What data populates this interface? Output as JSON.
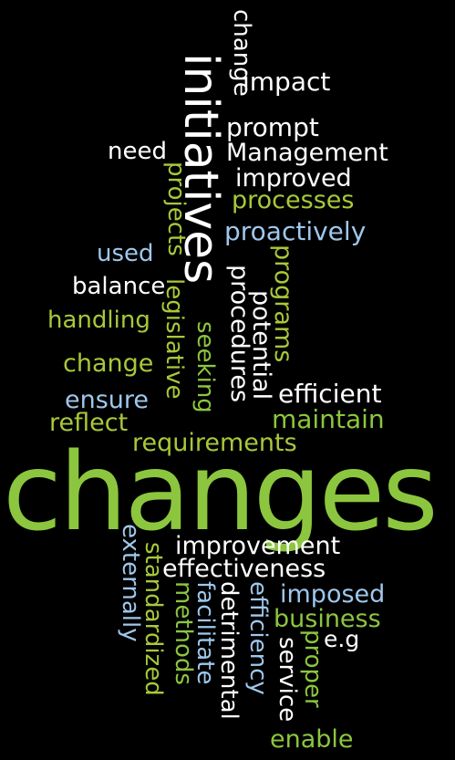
{
  "words": {
    "changes": "changes",
    "initiatives": "initiatives",
    "change_vertical": "change",
    "impact": "impact",
    "prompt": "prompt",
    "need": "need",
    "management": "Management",
    "improved": "improved",
    "projects": "projects",
    "processes": "processes",
    "proactively": "proactively",
    "used": "used",
    "balance": "balance",
    "procedures": "procedures",
    "programs": "programs",
    "potential": "potential",
    "handling": "handling",
    "legislative": "legislative",
    "seeking": "seeking",
    "change": "change",
    "ensure": "ensure",
    "efficient": "efficient",
    "reflect": "reflect",
    "maintain": "maintain",
    "requirements": "requirements",
    "improvement": "improvement",
    "externally": "externally",
    "standardized": "standardized",
    "effectiveness": "effectiveness",
    "methods": "methods",
    "facilitate": "facilitate",
    "detrimental": "detrimental",
    "efficiency": "efficiency",
    "imposed": "imposed",
    "business": "business",
    "eg": "e.g",
    "service": "service",
    "proper": "proper",
    "enable": "enable"
  },
  "colors": {
    "background": "#000000",
    "white": "#ffffff",
    "green": "#8cc63f",
    "lime": "#a8c83a",
    "blue": "#9fc7ec"
  }
}
